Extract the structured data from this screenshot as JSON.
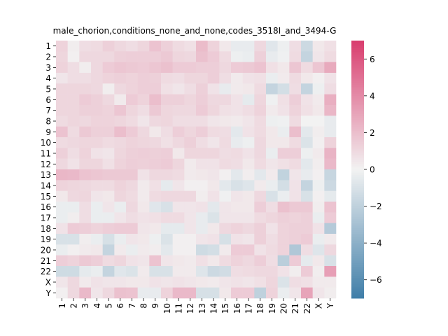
{
  "chart_data": {
    "type": "heatmap",
    "title": "male_chorion,conditions_none_and_none,codes_3518I_and_3494-G",
    "xlabel": "",
    "ylabel": "",
    "x_categories": [
      "1",
      "2",
      "3",
      "4",
      "5",
      "6",
      "7",
      "8",
      "9",
      "10",
      "11",
      "12",
      "13",
      "14",
      "15",
      "16",
      "17",
      "18",
      "19",
      "20",
      "21",
      "22",
      "X",
      "Y"
    ],
    "y_categories": [
      "1",
      "2",
      "3",
      "4",
      "5",
      "6",
      "7",
      "8",
      "9",
      "10",
      "11",
      "12",
      "13",
      "14",
      "15",
      "16",
      "17",
      "18",
      "19",
      "20",
      "21",
      "22",
      "X",
      "Y"
    ],
    "colorbar": {
      "range": [
        -7,
        7
      ],
      "ticks": [
        -6,
        -4,
        -2,
        0,
        2,
        4,
        6
      ],
      "tick_labels": [
        "−6",
        "−4",
        "−2",
        "0",
        "2",
        "4",
        "6"
      ],
      "low_color": "#3f7ea8",
      "mid_color": "#f2f2f2",
      "high_color": "#d93d6e"
    },
    "values": [
      [
        1.2,
        0.2,
        0.8,
        0.9,
        1.3,
        1.0,
        0.8,
        1.1,
        1.8,
        1.3,
        0.9,
        0.7,
        2.1,
        1.2,
        0.4,
        -0.4,
        -0.4,
        1.0,
        -0.7,
        -0.2,
        0.8,
        -1.5,
        0.4,
        0.7
      ],
      [
        1.1,
        0.1,
        1.0,
        1.0,
        1.0,
        1.3,
        1.4,
        1.4,
        1.4,
        1.6,
        1.1,
        1.0,
        1.9,
        1.5,
        0.9,
        -0.2,
        -0.3,
        1.3,
        -0.4,
        -0.1,
        0.9,
        -1.8,
        0.5,
        0.9
      ],
      [
        1.2,
        0.8,
        0.2,
        1.0,
        1.5,
        1.7,
        1.6,
        1.5,
        1.7,
        1.9,
        1.5,
        1.5,
        1.4,
        1.4,
        1.0,
        1.5,
        1.6,
        1.8,
        0.7,
        0.4,
        1.7,
        0.9,
        1.7,
        2.8
      ],
      [
        0.5,
        0.8,
        0.8,
        1.0,
        1.2,
        1.3,
        1.2,
        1.4,
        1.3,
        0.9,
        0.8,
        1.1,
        1.1,
        1.4,
        0.8,
        0.3,
        0.6,
        0.7,
        -0.3,
        0.3,
        0.9,
        0.4,
        0.1,
        0.6
      ],
      [
        1.1,
        1.1,
        1.1,
        1.0,
        0.2,
        1.0,
        1.2,
        1.4,
        1.4,
        0.7,
        0.5,
        0.8,
        1.3,
        0.6,
        -0.4,
        0.3,
        0.4,
        0.9,
        -1.8,
        -1.2,
        0.8,
        -1.8,
        -0.2,
        0.8
      ],
      [
        1.1,
        1.1,
        1.5,
        1.3,
        1.0,
        0.3,
        1.5,
        1.2,
        2.0,
        1.3,
        1.3,
        1.1,
        1.4,
        1.0,
        1.0,
        0.6,
        -0.5,
        1.1,
        -0.1,
        0.7,
        1.4,
        0.6,
        0.3,
        2.6
      ],
      [
        1.1,
        1.1,
        1.3,
        1.3,
        1.2,
        1.7,
        1.1,
        0.8,
        1.6,
        1.1,
        1.0,
        1.0,
        1.5,
        1.1,
        0.7,
        0.6,
        0.8,
        1.2,
        0.3,
        0.6,
        1.2,
        0.7,
        0.4,
        2.3
      ],
      [
        0.9,
        1.1,
        1.0,
        1.2,
        1.2,
        1.1,
        0.9,
        0.5,
        1.0,
        1.1,
        0.8,
        0.8,
        0.8,
        0.5,
        0.4,
        0.3,
        0.5,
        0.9,
        -0.2,
        -0.1,
        0.9,
        0.0,
        0.0,
        -0.4
      ],
      [
        1.8,
        0.9,
        1.6,
        1.3,
        1.3,
        2.0,
        1.5,
        1.0,
        0.4,
        0.8,
        1.4,
        1.1,
        1.4,
        0.9,
        0.8,
        -0.6,
        0.6,
        0.9,
        0.4,
        -0.3,
        2.0,
        -0.6,
        0.2,
        -0.4
      ],
      [
        0.9,
        1.0,
        1.1,
        1.1,
        0.9,
        1.0,
        1.2,
        1.1,
        1.0,
        0.7,
        1.0,
        1.3,
        0.8,
        0.5,
        0.9,
        -0.4,
        -0.2,
        1.0,
        0.4,
        0.4,
        0.9,
        -0.9,
        0.1,
        1.2
      ],
      [
        1.3,
        0.8,
        1.2,
        0.6,
        0.5,
        1.1,
        1.3,
        1.4,
        1.3,
        1.4,
        0.4,
        1.1,
        1.1,
        1.1,
        0.8,
        0.9,
        0.6,
        1.0,
        -0.3,
        1.4,
        1.4,
        -0.2,
        0.3,
        2.4
      ],
      [
        1.0,
        0.6,
        1.1,
        1.1,
        0.7,
        1.2,
        1.4,
        1.3,
        1.4,
        1.5,
        1.1,
        0.3,
        0.6,
        0.6,
        0.9,
        0.8,
        0.4,
        0.9,
        0.5,
        0.7,
        0.9,
        -0.6,
        0.2,
        2.2
      ],
      [
        2.3,
        2.2,
        1.8,
        1.7,
        1.6,
        1.6,
        1.6,
        0.6,
        1.0,
        1.0,
        0.9,
        0.3,
        0.4,
        0.5,
        0.1,
        -0.6,
        0.2,
        -0.6,
        0.3,
        -1.9,
        0.5,
        -0.4,
        0.1,
        -1.7
      ],
      [
        1.2,
        1.1,
        1.0,
        0.9,
        0.9,
        1.2,
        1.0,
        0.3,
        0.7,
        -0.5,
        0.5,
        0.1,
        0.1,
        0.4,
        -0.6,
        -1.0,
        -0.8,
        0.3,
        -0.3,
        -1.2,
        0.6,
        -1.8,
        -0.2,
        -1.5
      ],
      [
        0.4,
        1.0,
        1.1,
        0.5,
        0.4,
        1.1,
        0.9,
        0.3,
        0.9,
        1.0,
        1.0,
        1.0,
        0.2,
        0.6,
        -0.1,
        0.5,
        0.4,
        1.0,
        -1.0,
        -0.3,
        0.6,
        -1.0,
        0.1,
        -0.5
      ],
      [
        -0.3,
        -0.3,
        0.8,
        -0.3,
        0.5,
        -0.3,
        1.0,
        0.4,
        -0.7,
        -1.0,
        0.5,
        0.5,
        0.6,
        -0.6,
        0.5,
        0.4,
        0.4,
        1.4,
        0.8,
        1.9,
        1.6,
        1.6,
        0.2,
        1.8
      ],
      [
        -0.3,
        0.2,
        0.8,
        -0.3,
        -0.3,
        0.5,
        0.8,
        0.6,
        0.7,
        0.9,
        0.9,
        0.5,
        -0.4,
        -0.9,
        0.5,
        0.5,
        0.5,
        0.9,
        1.1,
        1.3,
        1.2,
        1.3,
        -0.3,
        1.5
      ],
      [
        0.6,
        1.5,
        1.4,
        1.2,
        1.4,
        1.5,
        1.5,
        0.5,
        0.4,
        -0.5,
        -0.5,
        0.5,
        -0.4,
        0.4,
        1.0,
        1.2,
        1.0,
        1.3,
        0.6,
        1.2,
        1.3,
        1.3,
        0.6,
        -2.4
      ],
      [
        -1.0,
        -1.0,
        0.2,
        -0.3,
        -1.1,
        -0.3,
        0.5,
        0.4,
        -0.2,
        -0.9,
        0.1,
        0.1,
        0.5,
        0.6,
        -1.1,
        0.6,
        0.5,
        1.3,
        0.8,
        1.2,
        1.3,
        1.5,
        -0.3,
        0.3
      ],
      [
        -0.3,
        0.1,
        0.3,
        0.4,
        -1.8,
        0.3,
        -0.3,
        0.3,
        0.2,
        -0.6,
        0.1,
        0.1,
        -1.4,
        -1.2,
        0.3,
        1.5,
        1.5,
        0.6,
        0.9,
        1.2,
        -2.6,
        0.8,
        -0.8,
        1.0
      ],
      [
        1.4,
        1.2,
        1.6,
        1.4,
        0.9,
        1.1,
        0.6,
        0.5,
        1.8,
        0.5,
        0.4,
        0.3,
        0.7,
        0.4,
        0.9,
        1.2,
        1.0,
        1.4,
        0.8,
        -2.2,
        1.5,
        -0.5,
        0.4,
        -1.0
      ],
      [
        -1.4,
        -1.4,
        -0.5,
        -0.3,
        -1.8,
        -0.7,
        -0.9,
        0.3,
        -1.0,
        -1.0,
        0.3,
        0.3,
        -0.8,
        -1.5,
        -1.3,
        0.8,
        0.9,
        1.0,
        1.0,
        0.6,
        0.2,
        1.5,
        0.2,
        3.2
      ],
      [
        0.5,
        1.0,
        0.3,
        0.6,
        0.5,
        0.5,
        0.4,
        0.4,
        0.6,
        0.5,
        0.6,
        0.5,
        0.4,
        0.3,
        0.5,
        0.6,
        0.5,
        0.7,
        1.1,
        -0.9,
        0.8,
        0.7,
        0.3,
        0.3
      ],
      [
        0.1,
        1.0,
        2.2,
        0.5,
        1.0,
        1.9,
        1.8,
        -0.4,
        -0.4,
        1.2,
        2.2,
        2.2,
        -1.1,
        -1.1,
        0.4,
        1.5,
        1.5,
        -2.0,
        1.2,
        -0.3,
        0.5,
        3.0,
        0.5,
        0.2
      ]
    ]
  }
}
